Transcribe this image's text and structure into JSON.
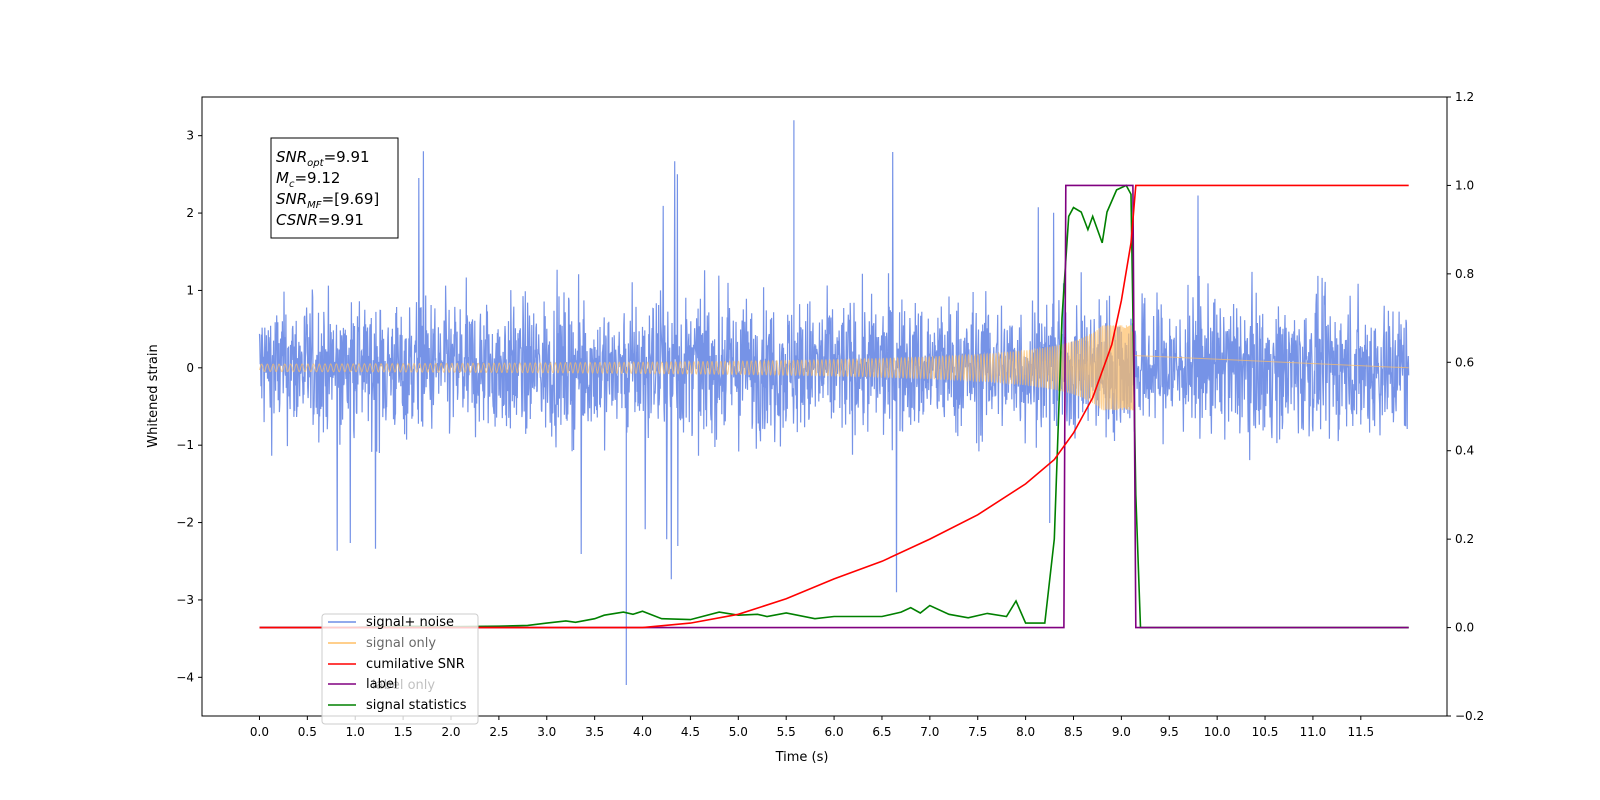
{
  "chart_data": {
    "type": "line",
    "xlabel": "Time (s)",
    "ylabel": "Whitened strain",
    "xlim": [
      -0.6,
      12.4
    ],
    "ylim_left": [
      -4.5,
      3.5
    ],
    "ylim_right": [
      -0.2,
      1.2
    ],
    "x_ticks": [
      0.0,
      0.5,
      1.0,
      1.5,
      2.0,
      2.5,
      3.0,
      3.5,
      4.0,
      4.5,
      5.0,
      5.5,
      6.0,
      6.5,
      7.0,
      7.5,
      8.0,
      8.5,
      9.0,
      9.5,
      10.0,
      10.5,
      11.0,
      11.5
    ],
    "x_tick_labels": [
      "0.0",
      "0.5",
      "1.0",
      "1.5",
      "2.0",
      "2.5",
      "3.0",
      "3.5",
      "4.0",
      "4.5",
      "5.0",
      "5.5",
      "6.0",
      "6.5",
      "7.0",
      "7.5",
      "8.0",
      "8.5",
      "9.0",
      "9.5",
      "10.0",
      "10.5",
      "11.0",
      "11.5"
    ],
    "y_ticks_left": [
      -4,
      -3,
      -2,
      -1,
      0,
      1,
      2,
      3
    ],
    "y_tick_labels_left": [
      "−4",
      "−3",
      "−2",
      "−1",
      "0",
      "1",
      "2",
      "3"
    ],
    "y_ticks_right": [
      -0.2,
      0.0,
      0.2,
      0.4,
      0.6,
      0.8,
      1.0,
      1.2
    ],
    "y_tick_labels_right": [
      "−0.2",
      "0.0",
      "0.2",
      "0.4",
      "0.6",
      "0.8",
      "1.0",
      "1.2"
    ],
    "grid": false,
    "legend_placement": "lower-left",
    "series": [
      {
        "name": "signal+ noise",
        "axis": "left",
        "color": "#6f8de6",
        "kind": "noise",
        "x_range": [
          0.0,
          12.0
        ],
        "envelope_typical": 1.6,
        "peak_max": 3.2,
        "peak_min": -4.1
      },
      {
        "name": "signal only",
        "axis": "left",
        "color": "#ffbf66",
        "kind": "chirp",
        "x_range": [
          0.0,
          9.15
        ],
        "amplitude_at_end": 0.55
      },
      {
        "name": "cumilative SNR",
        "axis": "right",
        "color": "#ff0000",
        "x": [
          0.0,
          3.5,
          4.0,
          4.5,
          5.0,
          5.5,
          6.0,
          6.5,
          7.0,
          7.5,
          8.0,
          8.3,
          8.5,
          8.7,
          8.9,
          9.0,
          9.1,
          9.15,
          12.0
        ],
        "y": [
          0.0,
          0.0,
          0.0,
          0.01,
          0.03,
          0.065,
          0.11,
          0.15,
          0.2,
          0.255,
          0.325,
          0.38,
          0.44,
          0.52,
          0.64,
          0.74,
          0.87,
          1.0,
          1.0
        ]
      },
      {
        "name": "label",
        "axis": "right",
        "color": "#800080",
        "x": [
          0.0,
          8.4,
          8.42,
          9.12,
          9.15,
          12.0
        ],
        "y": [
          0.0,
          0.0,
          1.0,
          1.0,
          0.0,
          0.0
        ]
      },
      {
        "name": "label only",
        "axis": "right",
        "color": "#800080",
        "hidden": true
      },
      {
        "name": "signal statistics",
        "axis": "right",
        "color": "#008000",
        "x": [
          0.0,
          0.9,
          1.5,
          2.0,
          2.5,
          2.8,
          3.0,
          3.2,
          3.3,
          3.5,
          3.6,
          3.8,
          3.9,
          4.0,
          4.2,
          4.5,
          4.8,
          5.0,
          5.2,
          5.3,
          5.5,
          5.8,
          6.0,
          6.5,
          6.7,
          6.8,
          6.9,
          7.0,
          7.2,
          7.4,
          7.6,
          7.8,
          7.9,
          8.0,
          8.2,
          8.3,
          8.38,
          8.45,
          8.5,
          8.58,
          8.65,
          8.7,
          8.8,
          8.85,
          8.95,
          9.05,
          9.1,
          9.15,
          9.2,
          12.0
        ],
        "y": [
          0.0,
          0.0,
          0.003,
          0.002,
          0.003,
          0.005,
          0.01,
          0.015,
          0.012,
          0.02,
          0.028,
          0.035,
          0.03,
          0.037,
          0.02,
          0.018,
          0.035,
          0.028,
          0.03,
          0.025,
          0.033,
          0.02,
          0.025,
          0.025,
          0.035,
          0.045,
          0.033,
          0.05,
          0.03,
          0.022,
          0.032,
          0.025,
          0.06,
          0.01,
          0.01,
          0.2,
          0.7,
          0.93,
          0.95,
          0.94,
          0.9,
          0.93,
          0.87,
          0.94,
          0.99,
          1.0,
          0.98,
          0.3,
          0.0,
          0.0
        ]
      }
    ],
    "annotation_box": {
      "lines": [
        {
          "base": "SNR",
          "sub": "opt",
          "value": "=9.91"
        },
        {
          "base": "M",
          "sub": "c",
          "value": "=9.12"
        },
        {
          "base": "SNR",
          "sub": "MF",
          "value": "=[9.69]"
        },
        {
          "base": "CSNR",
          "sub": "",
          "value": "=9.91"
        }
      ]
    }
  }
}
